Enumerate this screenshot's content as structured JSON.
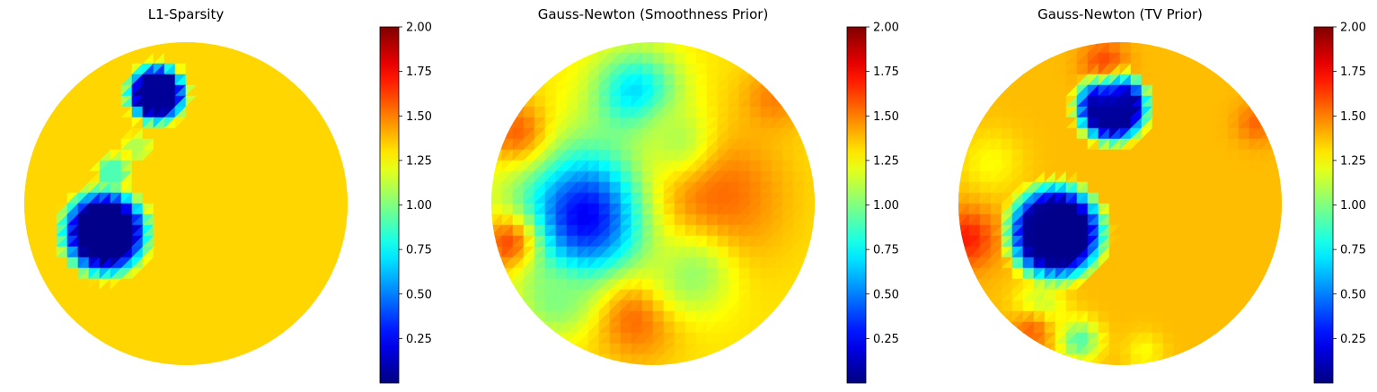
{
  "chart_data": [
    {
      "type": "heatmap",
      "title": "L1-Sparsity",
      "colormap": "jet",
      "colorbar": {
        "min": 0.0,
        "max": 2.0,
        "ticks": [
          "0.25",
          "0.50",
          "0.75",
          "1.00",
          "1.25",
          "1.50",
          "1.75",
          "2.00"
        ]
      },
      "background_value": 1.33,
      "blobs": [
        {
          "x": -0.18,
          "y": 0.68,
          "r": 0.22,
          "value": 0.05,
          "sharp": true
        },
        {
          "x": -0.5,
          "y": -0.18,
          "r": 0.32,
          "value": 0.02,
          "sharp": true
        },
        {
          "x": -0.45,
          "y": 0.2,
          "r": 0.12,
          "value": 0.9,
          "sharp": true
        },
        {
          "x": -0.3,
          "y": 0.35,
          "r": 0.1,
          "value": 1.1,
          "sharp": true
        }
      ]
    },
    {
      "type": "heatmap",
      "title": "Gauss-Newton (Smoothness Prior)",
      "colormap": "jet",
      "colorbar": {
        "min": 0.0,
        "max": 2.0,
        "ticks": [
          "0.25",
          "0.50",
          "0.75",
          "1.00",
          "1.25",
          "1.50",
          "1.75",
          "2.00"
        ]
      },
      "background_value": 1.3,
      "blobs": [
        {
          "x": -0.4,
          "y": -0.08,
          "r": 0.42,
          "value": 0.2
        },
        {
          "x": -0.1,
          "y": 0.68,
          "r": 0.26,
          "value": 0.65
        },
        {
          "x": 0.4,
          "y": 0.05,
          "r": 0.42,
          "value": 1.55
        },
        {
          "x": -0.1,
          "y": -0.72,
          "r": 0.26,
          "value": 1.55
        },
        {
          "x": -0.9,
          "y": -0.25,
          "r": 0.18,
          "value": 1.6
        },
        {
          "x": -0.85,
          "y": 0.45,
          "r": 0.2,
          "value": 1.55
        },
        {
          "x": 0.25,
          "y": -0.45,
          "r": 0.25,
          "value": 1.05
        },
        {
          "x": -0.6,
          "y": -0.6,
          "r": 0.2,
          "value": 1.0
        },
        {
          "x": 0.75,
          "y": 0.65,
          "r": 0.2,
          "value": 1.5
        },
        {
          "x": 0.15,
          "y": 0.4,
          "r": 0.22,
          "value": 1.1
        }
      ]
    },
    {
      "type": "heatmap",
      "title": "Gauss-Newton (TV Prior)",
      "colormap": "jet",
      "colorbar": {
        "min": 0.0,
        "max": 2.0,
        "ticks": [
          "0.25",
          "0.50",
          "0.75",
          "1.00",
          "1.25",
          "1.50",
          "1.75",
          "2.00"
        ]
      },
      "background_value": 1.38,
      "blobs": [
        {
          "x": -0.05,
          "y": 0.6,
          "r": 0.27,
          "value": 0.05,
          "sharp": true
        },
        {
          "x": -0.4,
          "y": -0.18,
          "r": 0.36,
          "value": 0.02,
          "sharp": true
        },
        {
          "x": -0.8,
          "y": 0.25,
          "r": 0.2,
          "value": 1.25
        },
        {
          "x": -0.95,
          "y": -0.22,
          "r": 0.18,
          "value": 1.7
        },
        {
          "x": -0.5,
          "y": -0.65,
          "r": 0.15,
          "value": 1.05
        },
        {
          "x": -0.55,
          "y": -0.8,
          "r": 0.15,
          "value": 1.55
        },
        {
          "x": -0.25,
          "y": -0.85,
          "r": 0.12,
          "value": 0.9
        },
        {
          "x": 0.85,
          "y": 0.5,
          "r": 0.13,
          "value": 1.55
        },
        {
          "x": -0.1,
          "y": 0.88,
          "r": 0.14,
          "value": 1.6
        },
        {
          "x": 0.15,
          "y": -0.92,
          "r": 0.12,
          "value": 1.25
        }
      ]
    }
  ]
}
